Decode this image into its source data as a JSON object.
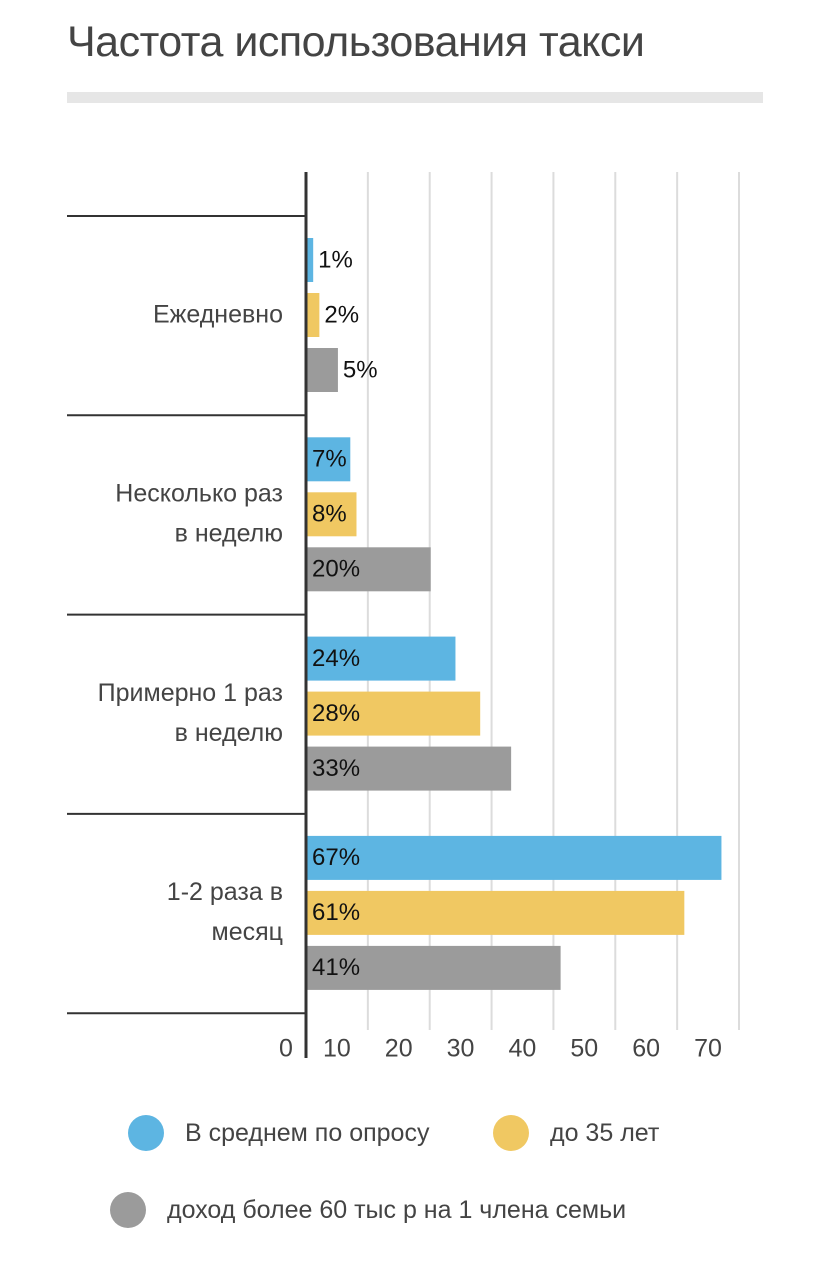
{
  "chart_data": {
    "type": "bar",
    "orientation": "horizontal",
    "title": "Частота использования такси",
    "categories": [
      "Ежедневно",
      "Несколько раз в неделю",
      "Примерно 1 раз в неделю",
      "1-2 раза в месяц"
    ],
    "category_label_lines": [
      [
        "Ежедневно"
      ],
      [
        "Несколько раз",
        "в неделю"
      ],
      [
        "Примерно 1 раз",
        "в неделю"
      ],
      [
        "1-2 раза в",
        "месяц"
      ]
    ],
    "series": [
      {
        "name": "В среднем по опросу",
        "color": "#5db5e2",
        "values": [
          1,
          7,
          24,
          67
        ],
        "labels": [
          "1%",
          "7%",
          "24%",
          "67%"
        ]
      },
      {
        "name": "до 35 лет",
        "color": "#f0c862",
        "values": [
          2,
          8,
          28,
          61
        ],
        "labels": [
          "2%",
          "8%",
          "28%",
          "61%"
        ]
      },
      {
        "name": "доход более 60 тыс р на 1 члена семьи",
        "color": "#9b9b9b",
        "values": [
          5,
          20,
          33,
          41
        ],
        "labels": [
          "5%",
          "20%",
          "33%",
          "41%"
        ]
      }
    ],
    "xlim": [
      0,
      70
    ],
    "xticks": [
      0,
      10,
      20,
      30,
      40,
      50,
      60,
      70
    ],
    "grid": "vertical",
    "legend_position": "bottom"
  }
}
